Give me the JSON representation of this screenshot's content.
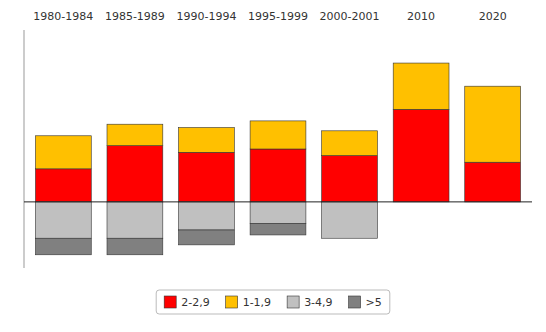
{
  "chart_data": {
    "type": "bar",
    "stacked": true,
    "categories": [
      "1980-1984",
      "1985-1989",
      "1990-1994",
      "1995-1999",
      "2000-2001",
      "2010",
      "2020"
    ],
    "series": [
      {
        "name": "2-2,9",
        "color": "#FF0000",
        "values": [
          1.0,
          1.7,
          1.5,
          1.6,
          1.4,
          2.8,
          1.2
        ]
      },
      {
        "name": "1-1,9",
        "color": "#FFC000",
        "values": [
          1.0,
          0.65,
          0.75,
          0.85,
          0.75,
          1.4,
          2.3
        ]
      },
      {
        "name": "3-4,9",
        "color": "#C0C0C0",
        "values": [
          -1.1,
          -1.1,
          -0.85,
          -0.65,
          -1.1,
          0.0,
          0.0
        ]
      },
      {
        "name": ">5",
        "color": "#808080",
        "values": [
          -0.5,
          -0.5,
          -0.45,
          -0.35,
          0.0,
          0.0,
          0.0
        ]
      }
    ],
    "ylim": [
      -2.0,
      5.2
    ],
    "yticks": [],
    "tick_labels": "x",
    "grid": false,
    "legend": "bottom"
  }
}
